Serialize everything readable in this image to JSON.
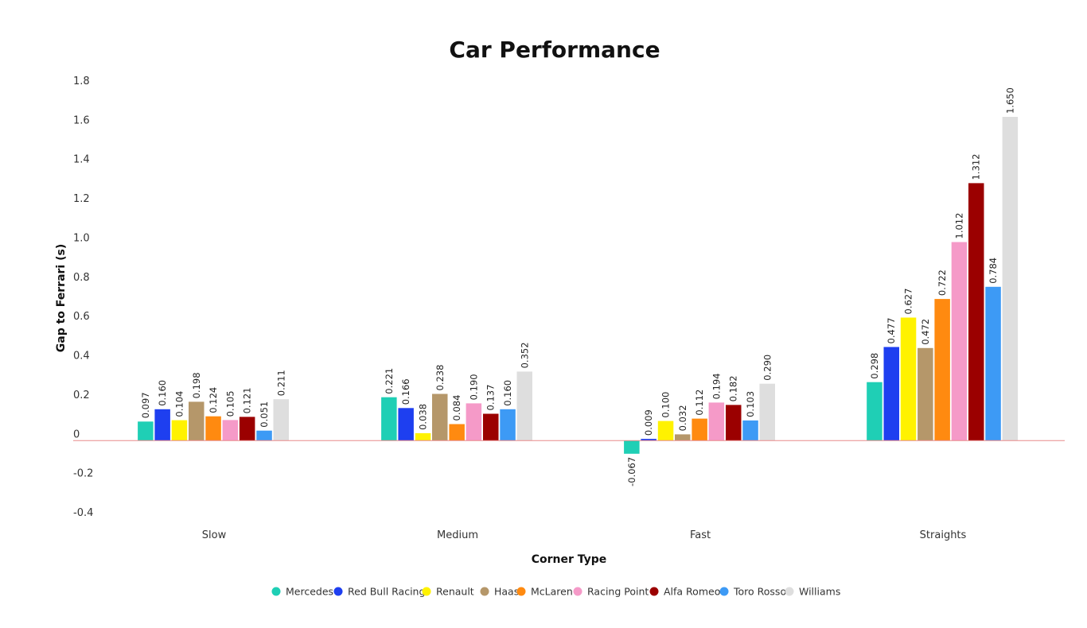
{
  "chart_data": {
    "type": "bar",
    "title": "Car Performance",
    "xlabel": "Corner Type",
    "ylabel": "Gap to Ferrari (s)",
    "ylim": [
      -0.4,
      1.8
    ],
    "yticks": [
      "1.8",
      "1.6",
      "1.4",
      "1.2",
      "1.0",
      "0.8",
      "0.6",
      "0.4",
      "0.2",
      "0",
      "-0.2",
      "-0.4"
    ],
    "categories": [
      "Slow",
      "Medium",
      "Fast",
      "Straights"
    ],
    "legend_position": "bottom",
    "zero_line_color": "#e88a8a",
    "series": [
      {
        "name": "Mercedes",
        "color": "#1fcfb5",
        "values": [
          0.097,
          0.221,
          -0.067,
          0.298
        ],
        "labels": [
          "0.097",
          "0.221",
          "-0.067",
          "0.298"
        ]
      },
      {
        "name": "Red Bull Racing",
        "color": "#1e3ff0",
        "values": [
          0.16,
          0.166,
          0.009,
          0.477
        ],
        "labels": [
          "0.160",
          "0.166",
          "0.009",
          "0.477"
        ]
      },
      {
        "name": "Renault",
        "color": "#fff200",
        "values": [
          0.104,
          0.038,
          0.1,
          0.627
        ],
        "labels": [
          "0.104",
          "0.038",
          "0.100",
          "0.627"
        ]
      },
      {
        "name": "Haas",
        "color": "#b5976a",
        "values": [
          0.198,
          0.238,
          0.032,
          0.472
        ],
        "labels": [
          "0.198",
          "0.238",
          "0.032",
          "0.472"
        ]
      },
      {
        "name": "McLaren",
        "color": "#ff8a10",
        "values": [
          0.124,
          0.084,
          0.112,
          0.722
        ],
        "labels": [
          "0.124",
          "0.084",
          "0.112",
          "0.722"
        ]
      },
      {
        "name": "Racing Point",
        "color": "#f59ac8",
        "values": [
          0.105,
          0.19,
          0.194,
          1.012
        ],
        "labels": [
          "0.105",
          "0.190",
          "0.194",
          "1.012"
        ]
      },
      {
        "name": "Alfa Romeo",
        "color": "#9b0000",
        "values": [
          0.121,
          0.137,
          0.182,
          1.312
        ],
        "labels": [
          "0.121",
          "0.137",
          "0.182",
          "1.312"
        ]
      },
      {
        "name": "Toro Rosso",
        "color": "#3d9af5",
        "values": [
          0.051,
          0.16,
          0.103,
          0.784
        ],
        "labels": [
          "0.051",
          "0.160",
          "0.103",
          "0.784"
        ]
      },
      {
        "name": "Williams",
        "color": "#dedede",
        "values": [
          0.211,
          0.352,
          0.29,
          1.65
        ],
        "labels": [
          "0.211",
          "0.352",
          "0.290",
          "1.650"
        ]
      }
    ]
  }
}
